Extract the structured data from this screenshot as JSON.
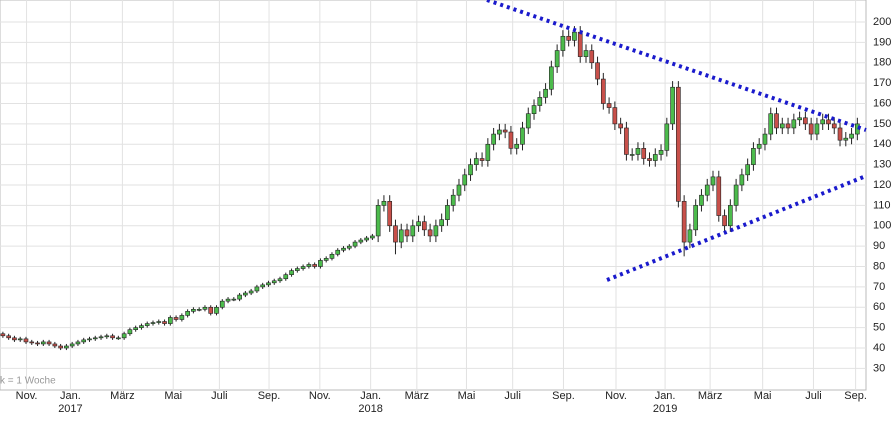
{
  "chart_data": {
    "type": "candlestick",
    "annotation": "k = 1 Woche",
    "up_color": "#4cbb4c",
    "down_color": "#c8504a",
    "grid": true,
    "xlim": [
      -0.5,
      149.5
    ],
    "ylim": [
      19.4,
      210.8
    ],
    "yticks": [
      30,
      40,
      50,
      60,
      70,
      80,
      90,
      100,
      110,
      120,
      130,
      140,
      150,
      160,
      170,
      180,
      190,
      200
    ],
    "xticks": [
      {
        "value": 4.1,
        "label": "Nov."
      },
      {
        "value": 11.7,
        "label": "Jan."
      },
      {
        "value": 20.7,
        "label": "März"
      },
      {
        "value": 29.5,
        "label": "Mai"
      },
      {
        "value": 37.5,
        "label": "Juli"
      },
      {
        "value": 46.1,
        "label": "Sep."
      },
      {
        "value": 54.9,
        "label": "Nov."
      },
      {
        "value": 63.7,
        "label": "Jan."
      },
      {
        "value": 71.7,
        "label": "März"
      },
      {
        "value": 80.3,
        "label": "Mai"
      },
      {
        "value": 88.3,
        "label": "Juli"
      },
      {
        "value": 97.1,
        "label": "Sep."
      },
      {
        "value": 106.2,
        "label": "Nov."
      },
      {
        "value": 114.7,
        "label": "Jan."
      },
      {
        "value": 122.5,
        "label": "März"
      },
      {
        "value": 131.6,
        "label": "Mai"
      },
      {
        "value": 140.4,
        "label": "Juli"
      },
      {
        "value": 147.7,
        "label": "Sep."
      }
    ],
    "year_ticks": [
      {
        "value": 11.7,
        "label": "2017"
      },
      {
        "value": 63.7,
        "label": "2018"
      },
      {
        "value": 114.7,
        "label": "2019"
      }
    ],
    "open": [
      47,
      46,
      45,
      44,
      44.5,
      43,
      42.5,
      42,
      43,
      42,
      41,
      40,
      41,
      42,
      43,
      44,
      44.5,
      45,
      45.5,
      46,
      45,
      45,
      47,
      49,
      50,
      51,
      52,
      52.5,
      53,
      52,
      55,
      54,
      56,
      58,
      59,
      59,
      60,
      57,
      60,
      63,
      64,
      64,
      66,
      67,
      68,
      70,
      71,
      72,
      73,
      74,
      76,
      78,
      79,
      80,
      81,
      80,
      83,
      84,
      86,
      88,
      89,
      90,
      92,
      93,
      94,
      95,
      110,
      112,
      100,
      92,
      98,
      95,
      100,
      102,
      98,
      95,
      100,
      103,
      110,
      115,
      120,
      125,
      130,
      133,
      132,
      140,
      145,
      147,
      146,
      138,
      140,
      148,
      155,
      159,
      163,
      167,
      178,
      186,
      193,
      191,
      195,
      183,
      186,
      180,
      172,
      160,
      158,
      150,
      148,
      135,
      135,
      138,
      133,
      132,
      135,
      137,
      150,
      168,
      112,
      92,
      98,
      110,
      115,
      120,
      124,
      105,
      100,
      110,
      120,
      125,
      130,
      138,
      140,
      145,
      155,
      148,
      150,
      148,
      152,
      153,
      150,
      145,
      150,
      152,
      150,
      148,
      142,
      143,
      145
    ],
    "high": [
      48,
      47,
      46,
      45.5,
      45.5,
      44,
      43.5,
      44,
      44,
      43,
      42,
      42,
      43,
      44,
      45,
      45.5,
      46,
      46.5,
      47,
      47,
      46,
      48,
      50,
      51,
      52,
      53,
      53.5,
      54,
      54,
      56,
      56,
      57,
      59,
      60,
      60,
      61,
      61,
      61,
      64,
      65,
      65,
      67,
      68,
      69,
      71,
      72,
      73,
      74,
      75,
      77,
      79,
      80,
      81,
      82,
      82,
      84,
      85,
      87,
      89,
      90,
      91,
      93,
      94,
      95,
      96,
      113,
      115,
      115,
      103,
      101,
      101,
      103,
      105,
      105,
      101,
      103,
      106,
      113,
      118,
      123,
      128,
      133,
      136,
      136,
      143,
      148,
      150,
      150,
      149,
      143,
      151,
      158,
      162,
      166,
      170,
      181,
      189,
      196,
      196,
      198,
      198,
      189,
      189,
      183,
      175,
      163,
      161,
      153,
      151,
      138,
      141,
      141,
      136,
      138,
      140,
      153,
      171,
      171,
      115,
      101,
      113,
      118,
      123,
      127,
      127,
      108,
      113,
      123,
      128,
      133,
      141,
      143,
      148,
      158,
      158,
      153,
      153,
      155,
      156,
      156,
      153,
      153,
      155,
      155,
      153,
      151,
      146,
      148,
      153
    ],
    "low": [
      45,
      44,
      43,
      43,
      42,
      41.5,
      41,
      41,
      41,
      40,
      39,
      39,
      40,
      41,
      42,
      43,
      43.5,
      44,
      44.5,
      44,
      44,
      44,
      46,
      48,
      49,
      50,
      51,
      51.5,
      51,
      51,
      53,
      53,
      55,
      57,
      58,
      58,
      56,
      56,
      59,
      62,
      63,
      63,
      65,
      66,
      67,
      69,
      70,
      71,
      72,
      73,
      75,
      77,
      78,
      79,
      79,
      79,
      82,
      83,
      85,
      87,
      88,
      89,
      91,
      92,
      93,
      92,
      107,
      97,
      86,
      89,
      92,
      92,
      97,
      95,
      92,
      92,
      97,
      100,
      107,
      112,
      117,
      122,
      127,
      129,
      129,
      137,
      142,
      143,
      135,
      135,
      137,
      145,
      152,
      156,
      160,
      164,
      175,
      183,
      188,
      188,
      180,
      180,
      177,
      169,
      157,
      155,
      147,
      145,
      132,
      132,
      132,
      130,
      129,
      129,
      132,
      134,
      147,
      109,
      85,
      89,
      95,
      107,
      112,
      117,
      102,
      97,
      97,
      107,
      117,
      122,
      127,
      135,
      137,
      142,
      145,
      145,
      145,
      145,
      149,
      147,
      142,
      142,
      147,
      147,
      145,
      139,
      139,
      140,
      142
    ],
    "close": [
      46,
      45,
      44,
      44.5,
      43,
      42.5,
      42,
      43,
      42,
      41,
      40,
      41,
      42,
      43,
      44,
      44.5,
      45,
      45.5,
      46,
      45,
      45,
      47,
      49,
      50,
      51,
      52,
      52.5,
      53,
      52,
      55,
      54,
      56,
      58,
      59,
      59,
      60,
      57,
      60,
      63,
      64,
      64,
      66,
      67,
      68,
      70,
      71,
      72,
      73,
      74,
      76,
      78,
      79,
      80,
      81,
      80,
      83,
      84,
      86,
      88,
      89,
      90,
      92,
      93,
      94,
      95,
      110,
      112,
      100,
      92,
      98,
      95,
      100,
      102,
      98,
      95,
      100,
      103,
      110,
      115,
      120,
      125,
      130,
      133,
      132,
      140,
      145,
      147,
      146,
      138,
      140,
      148,
      155,
      159,
      163,
      167,
      178,
      186,
      193,
      191,
      195,
      183,
      186,
      180,
      172,
      160,
      158,
      150,
      148,
      135,
      135,
      138,
      133,
      132,
      135,
      137,
      150,
      168,
      112,
      92,
      98,
      110,
      115,
      120,
      124,
      105,
      100,
      110,
      120,
      125,
      130,
      138,
      140,
      145,
      155,
      148,
      150,
      148,
      152,
      153,
      150,
      145,
      150,
      152,
      150,
      148,
      142,
      143,
      145,
      150
    ]
  }
}
